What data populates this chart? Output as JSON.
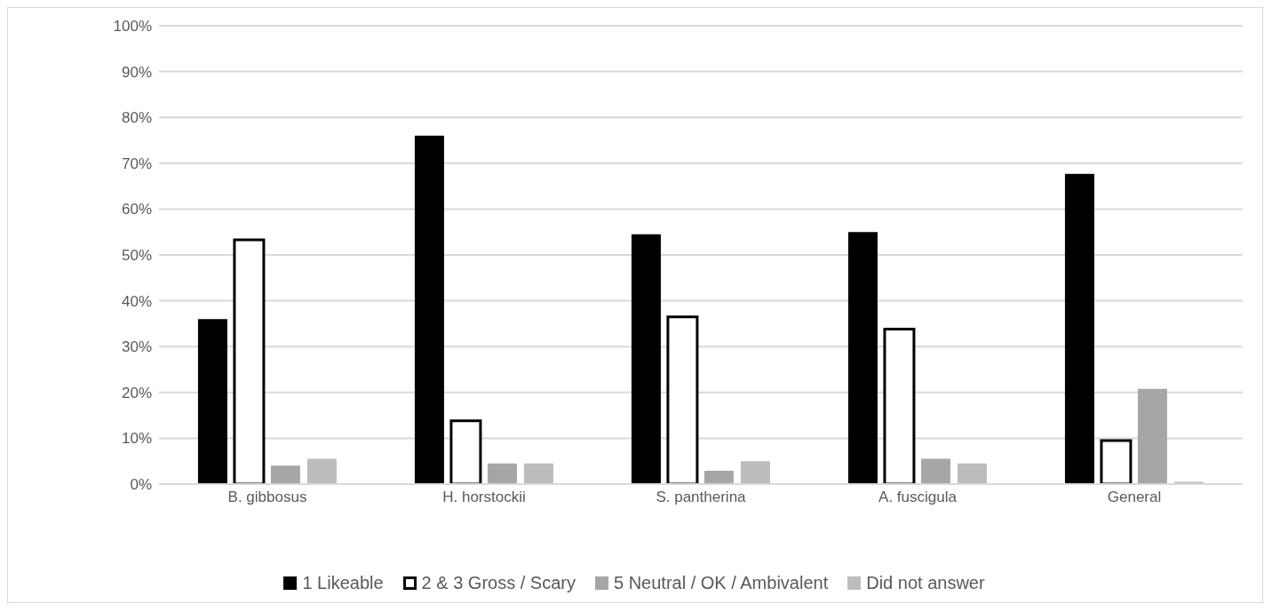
{
  "chart_data": {
    "type": "bar",
    "categories": [
      "B. gibbosus",
      "H. horstockii",
      "S. pantherina",
      "A. fuscigula",
      "General"
    ],
    "series": [
      {
        "name": "1 Likeable",
        "color": "#000000",
        "values": [
          36,
          76,
          54.5,
          55,
          67.7
        ]
      },
      {
        "name": "2 & 3 Gross / Scary",
        "color": "#ffffff",
        "values": [
          53.3,
          13.8,
          36.5,
          33.8,
          9.5
        ]
      },
      {
        "name": "5 Neutral / OK / Ambivalent",
        "color": "#a6a6a6",
        "values": [
          4,
          4.5,
          2.9,
          5.5,
          20.8
        ]
      },
      {
        "name": "Did not answer",
        "color": "#bcbcbc",
        "values": [
          5.5,
          4.5,
          5,
          4.5,
          0.5
        ]
      }
    ],
    "ylim": [
      0,
      100
    ],
    "yticks": [
      {
        "value": 0,
        "label": "0%"
      },
      {
        "value": 10,
        "label": "10%"
      },
      {
        "value": 20,
        "label": "20%"
      },
      {
        "value": 30,
        "label": "30%"
      },
      {
        "value": 40,
        "label": "40%"
      },
      {
        "value": 50,
        "label": "50%"
      },
      {
        "value": 60,
        "label": "60%"
      },
      {
        "value": 70,
        "label": "70%"
      },
      {
        "value": 80,
        "label": "80%"
      },
      {
        "value": 90,
        "label": "90%"
      },
      {
        "value": 100,
        "label": "100%"
      }
    ],
    "grid": "y",
    "legend": "bottom"
  }
}
